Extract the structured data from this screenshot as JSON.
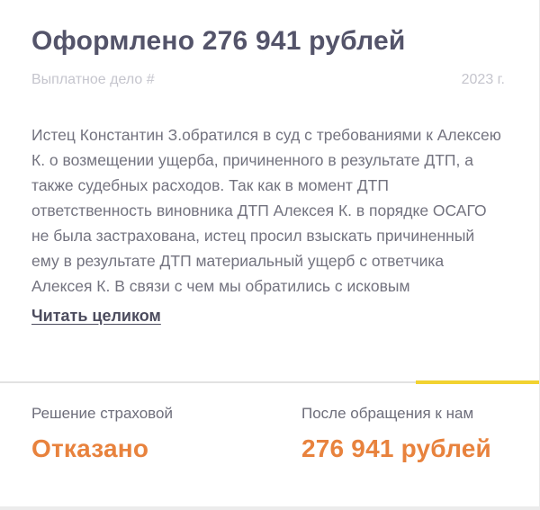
{
  "card": {
    "title": "Оформлено 276 941 рублей",
    "meta": {
      "case_label": "Выплатное дело #",
      "year": "2023 г."
    },
    "body_text": "Истец Константин З.обратился в суд с требованиями к Алексею К. о возмещении ущерба, причиненного в результате ДТП, а также судебных расходов. Так как в момент ДТП ответственность виновника ДТП Алексея К. в порядке ОСАГО не была застрахована, истец просил взыскать причиненный ему в результате ДТП материальный ущерб с ответчика Алексея К. В связи с чем мы обратились с исковым",
    "read_more_label": "Читать целиком",
    "results": [
      {
        "label": "Решение страховой",
        "value": "Отказано"
      },
      {
        "label": "После обращения к нам",
        "value": "276 941 рублей"
      }
    ],
    "colors": {
      "title": "#54546a",
      "body": "#73737f",
      "muted": "#c5c5cd",
      "result_label": "#6d6d7a",
      "accent_orange": "#e8823d",
      "accent_yellow": "#f2d230"
    }
  }
}
